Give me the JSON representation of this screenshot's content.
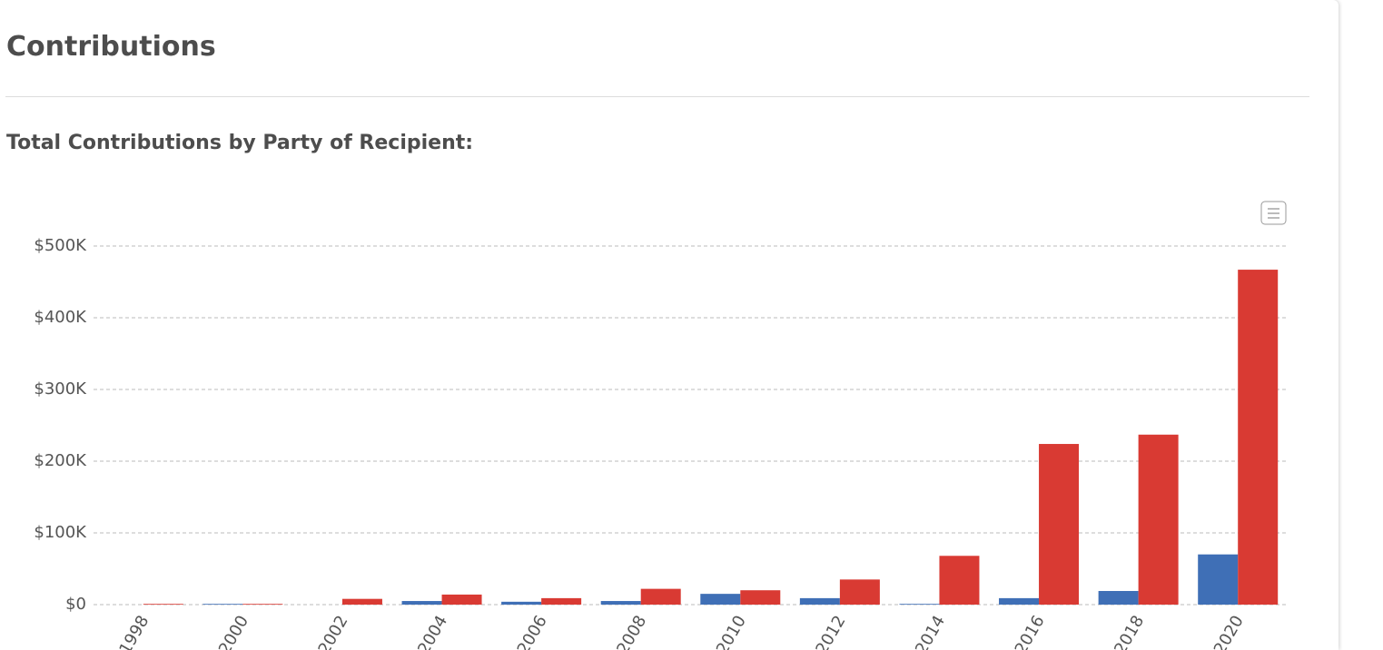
{
  "header": {
    "title": "Contributions",
    "subtitle": "Total Contributions by Party of Recipient:"
  },
  "chart_data": {
    "type": "bar",
    "categories": [
      "1998",
      "2000",
      "2002",
      "2004",
      "2006",
      "2008",
      "2010",
      "2012",
      "2014",
      "2016",
      "2018",
      "2020"
    ],
    "series": [
      {
        "color": "#3f6fb6",
        "values": [
          0,
          1000,
          0,
          5000,
          4000,
          5000,
          15000,
          9000,
          1000,
          9000,
          19000,
          70000
        ]
      },
      {
        "color": "#d93a33",
        "values": [
          1000,
          1000,
          8000,
          14000,
          9000,
          22000,
          20000,
          35000,
          68000,
          224000,
          237000,
          467000
        ]
      }
    ],
    "ylim": [
      0,
      500000
    ],
    "yticks": [
      {
        "value": 0,
        "label": "$0"
      },
      {
        "value": 100000,
        "label": "$100K"
      },
      {
        "value": 200000,
        "label": "$200K"
      },
      {
        "value": 300000,
        "label": "$300K"
      },
      {
        "value": 400000,
        "label": "$400K"
      },
      {
        "value": 500000,
        "label": "$500K"
      }
    ],
    "grid": true
  }
}
